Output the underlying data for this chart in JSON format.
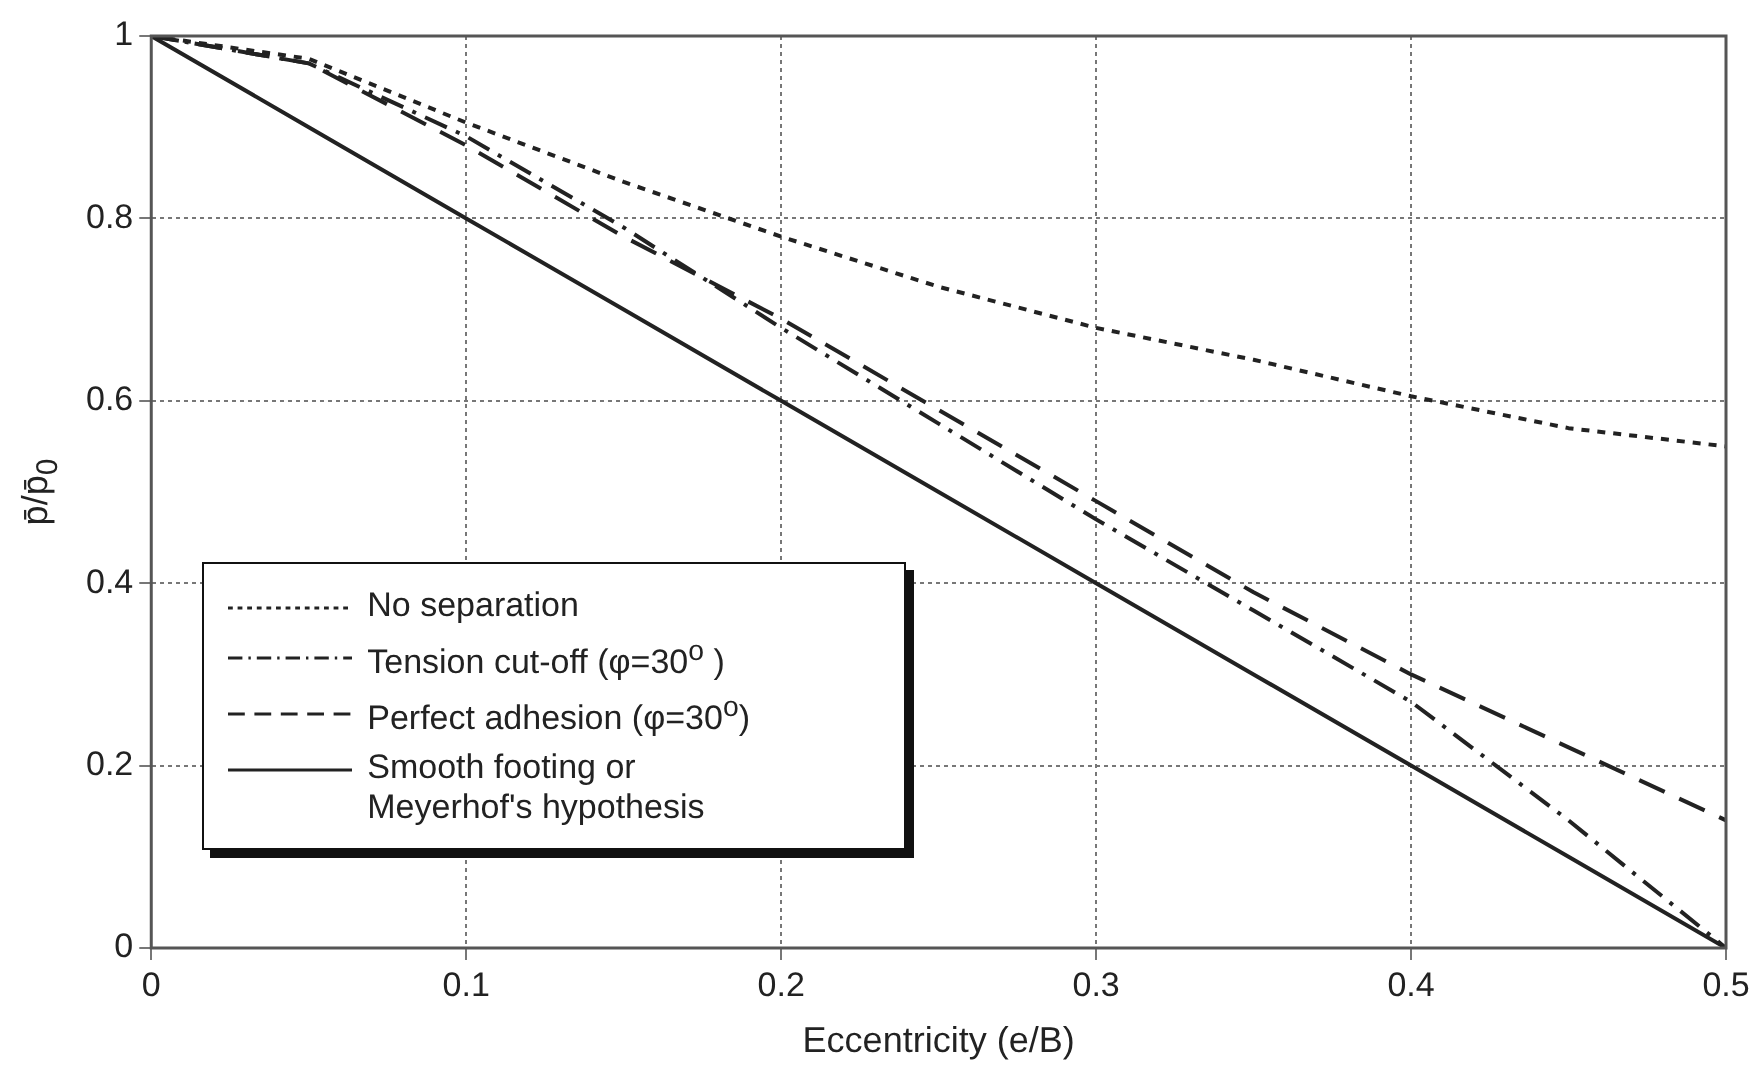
{
  "chart_data": {
    "type": "line",
    "xlabel": "Eccentricity (e/B)",
    "ylabel": "p̄/p̄$_{0}$",
    "x": [
      0,
      0.05,
      0.1,
      0.15,
      0.2,
      0.25,
      0.3,
      0.35,
      0.4,
      0.45,
      0.5
    ],
    "series": [
      {
        "name": "No separation",
        "color": "#222222",
        "line_style": "dotted",
        "values": [
          1,
          0.975,
          0.905,
          0.84,
          0.78,
          0.725,
          0.68,
          0.645,
          0.605,
          0.57,
          0.55
        ]
      },
      {
        "name": "Tension cut-off (φ=30$^{o}$ )",
        "color": "#222222",
        "line_style": "dashdot",
        "values": [
          1,
          0.97,
          0.89,
          0.79,
          0.68,
          0.575,
          0.47,
          0.37,
          0.27,
          0.14,
          0
        ]
      },
      {
        "name": "Perfect adhesion (φ=30$^{o}$)",
        "color": "#222222",
        "line_style": "dashed",
        "values": [
          1,
          0.97,
          0.88,
          0.78,
          0.69,
          0.59,
          0.49,
          0.39,
          0.3,
          0.22,
          0.14
        ]
      },
      {
        "name": "Smooth footing or\nMeyerhof's hypothesis",
        "color": "#222222",
        "line_style": "solid",
        "values": [
          1,
          0.9,
          0.8,
          0.7,
          0.6,
          0.5,
          0.4,
          0.3,
          0.2,
          0.1,
          0
        ]
      }
    ],
    "xlim": [
      0,
      0.5
    ],
    "xticks": [
      0,
      0.1,
      0.2,
      0.3,
      0.4,
      0.5
    ],
    "ylim": [
      0,
      1
    ],
    "yticks": [
      0,
      0.2,
      0.4,
      0.6,
      0.8,
      1
    ],
    "grid": true,
    "legend": "bottom left",
    "marker": "none"
  }
}
